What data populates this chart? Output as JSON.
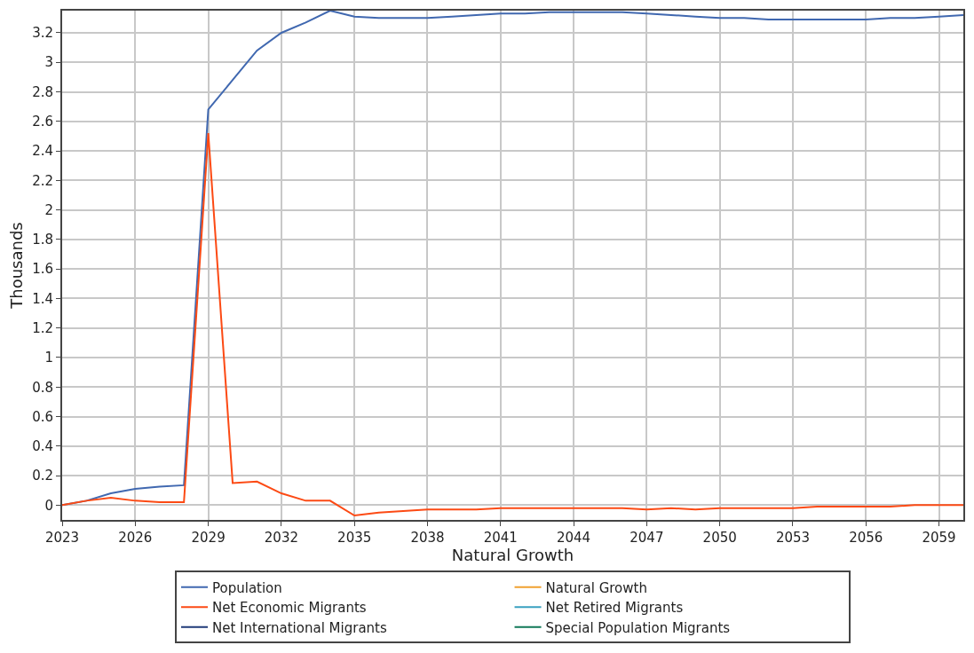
{
  "chart_data": {
    "type": "line",
    "xlabel": "Natural Growth",
    "ylabel": "Thousands",
    "x": [
      2023,
      2024,
      2025,
      2026,
      2027,
      2028,
      2029,
      2030,
      2031,
      2032,
      2033,
      2034,
      2035,
      2036,
      2037,
      2038,
      2039,
      2040,
      2041,
      2042,
      2043,
      2044,
      2045,
      2046,
      2047,
      2048,
      2049,
      2050,
      2051,
      2052,
      2053,
      2054,
      2055,
      2056,
      2057,
      2058,
      2059,
      2060
    ],
    "series": [
      {
        "name": "Population",
        "color": "#4068b0",
        "values": [
          0,
          0.03,
          0.08,
          0.11,
          0.125,
          0.135,
          2.68,
          2.88,
          3.08,
          3.2,
          3.27,
          3.35,
          3.31,
          3.3,
          3.3,
          3.3,
          3.31,
          3.32,
          3.33,
          3.33,
          3.34,
          3.34,
          3.34,
          3.34,
          3.33,
          3.32,
          3.31,
          3.3,
          3.3,
          3.29,
          3.29,
          3.29,
          3.29,
          3.29,
          3.3,
          3.3,
          3.31,
          3.32
        ]
      },
      {
        "name": "Net Economic Migrants",
        "color": "#fc4a14",
        "values": [
          0,
          0.03,
          0.05,
          0.03,
          0.02,
          0.02,
          2.52,
          0.15,
          0.16,
          0.08,
          0.03,
          0.03,
          -0.07,
          -0.05,
          -0.04,
          -0.03,
          -0.03,
          -0.03,
          -0.02,
          -0.02,
          -0.02,
          -0.02,
          -0.02,
          -0.02,
          -0.03,
          -0.02,
          -0.03,
          -0.02,
          -0.02,
          -0.02,
          -0.02,
          -0.01,
          -0.01,
          -0.01,
          -0.01,
          0,
          0,
          0
        ]
      },
      {
        "name": "Net International Migrants",
        "color": "#1f3a78",
        "values": [
          null,
          null,
          null,
          null,
          null,
          null,
          null,
          null,
          null,
          null,
          null,
          null,
          null,
          null,
          null,
          null,
          null,
          null,
          null,
          null,
          null,
          null,
          null,
          null,
          null,
          null,
          null,
          null,
          null,
          null,
          null,
          null,
          null,
          null,
          null,
          null,
          null,
          null
        ]
      },
      {
        "name": "Natural Growth",
        "color": "#f0a030",
        "values": [
          null,
          null,
          null,
          null,
          null,
          null,
          null,
          null,
          null,
          null,
          null,
          null,
          null,
          null,
          null,
          null,
          null,
          null,
          null,
          null,
          null,
          null,
          null,
          null,
          null,
          null,
          null,
          null,
          null,
          null,
          null,
          null,
          null,
          null,
          null,
          null,
          null,
          null
        ]
      },
      {
        "name": "Net Retired Migrants",
        "color": "#3aa0c0",
        "values": [
          null,
          null,
          null,
          null,
          null,
          null,
          null,
          null,
          null,
          null,
          null,
          null,
          null,
          null,
          null,
          null,
          null,
          null,
          null,
          null,
          null,
          null,
          null,
          null,
          null,
          null,
          null,
          null,
          null,
          null,
          null,
          null,
          null,
          null,
          null,
          null,
          null,
          null
        ]
      },
      {
        "name": "Special Population Migrants",
        "color": "#107858",
        "values": [
          null,
          null,
          null,
          null,
          null,
          null,
          null,
          null,
          null,
          null,
          null,
          null,
          null,
          null,
          null,
          null,
          null,
          null,
          null,
          null,
          null,
          null,
          null,
          null,
          null,
          null,
          null,
          null,
          null,
          null,
          null,
          null,
          null,
          null,
          null,
          null,
          null,
          null
        ]
      }
    ],
    "xlim": [
      2023,
      2060
    ],
    "xticks": [
      2023,
      2026,
      2029,
      2032,
      2035,
      2038,
      2041,
      2044,
      2047,
      2050,
      2053,
      2056,
      2059
    ],
    "ylim": [
      -0.1,
      3.35
    ],
    "yticks": [
      0,
      0.2,
      0.4,
      0.6,
      0.8,
      1,
      1.2,
      1.4,
      1.6,
      1.8,
      2,
      2.2,
      2.4,
      2.6,
      2.8,
      3,
      3.2
    ],
    "grid": true,
    "legend": "bottom",
    "marker": "none",
    "line_style": "solid"
  }
}
